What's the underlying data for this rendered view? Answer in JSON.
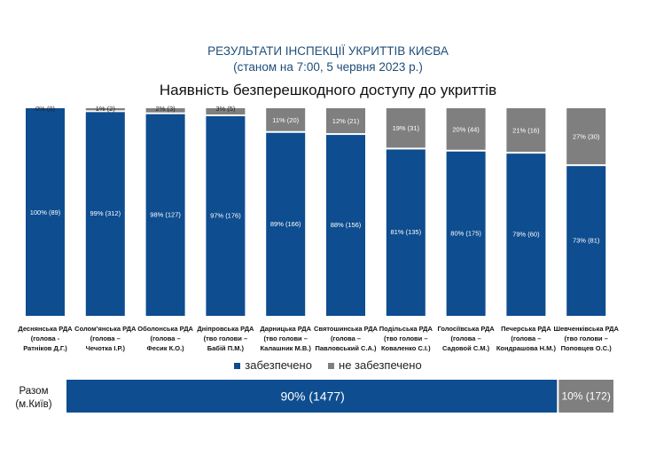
{
  "header": {
    "title": "РЕЗУЛЬТАТИ ІНСПЕКЦІЇ УКРИТТІВ КИЄВА",
    "subtitle": "(станом на 7:00, 5 червня 2023 р.)"
  },
  "chart_data": {
    "type": "bar",
    "stacked": true,
    "percent": true,
    "title": "Наявність безперешкодного доступу до укриттів",
    "categories": [
      [
        "Деснянська РДА",
        "(голова -",
        "Ратніков Д.Г.)"
      ],
      [
        "Солом'янська РДА",
        "(голова –",
        "Чечотка І.Р.)"
      ],
      [
        "Оболонська РДА",
        "(голова –",
        "Фесик К.О.)"
      ],
      [
        "Дніпровська РДА",
        "(тво голови –",
        "Бабій П.М.)"
      ],
      [
        "Дарницька РДА",
        "(тво голови –",
        "Калашник М.В.)"
      ],
      [
        "Святошинська РДА",
        "(голова –",
        "Павловський С.А.)"
      ],
      [
        "Подільська РДА",
        "(тво голови –",
        "Коваленко С.І.)"
      ],
      [
        "Голосіївська РДА",
        "(голова –",
        "Садовой С.М.)"
      ],
      [
        "Печерська РДА",
        "(голова –",
        "Кондрашова Н.М.)"
      ],
      [
        "Шевченківська РДА",
        "(тво голови –",
        "Поповцев О.С.)"
      ]
    ],
    "series": [
      {
        "name": "забезпечено",
        "color": "#0e4d8f",
        "percent": [
          100,
          99,
          98,
          97,
          89,
          88,
          81,
          80,
          79,
          73
        ],
        "count": [
          89,
          312,
          127,
          176,
          166,
          156,
          135,
          175,
          60,
          81
        ],
        "labels": [
          "100% (89)",
          "99% (312)",
          "98% (127)",
          "97% (176)",
          "89% (166)",
          "88% (156)",
          "81% (135)",
          "80% (175)",
          "79% (60)",
          "73% (81)"
        ]
      },
      {
        "name": "не забезпечено",
        "color": "#7f7f7f",
        "percent": [
          0,
          1,
          2,
          3,
          11,
          12,
          19,
          20,
          21,
          27
        ],
        "count": [
          0,
          2,
          3,
          5,
          20,
          21,
          31,
          44,
          16,
          30
        ],
        "labels": [
          "0% (0)",
          "1% (2)",
          "2% (3)",
          "3% (5)",
          "11% (20)",
          "12% (21)",
          "19% (31)",
          "20% (44)",
          "21% (16)",
          "27% (30)"
        ]
      }
    ],
    "legend": "bottom",
    "ylim": [
      0,
      100
    ],
    "total": {
      "label": [
        "Разом",
        "(м.Київ)"
      ],
      "values": [
        {
          "percent": 90,
          "count": 1477,
          "label": "90% (1477)"
        },
        {
          "percent": 10,
          "count": 172,
          "label": "10% (172)"
        }
      ]
    }
  }
}
